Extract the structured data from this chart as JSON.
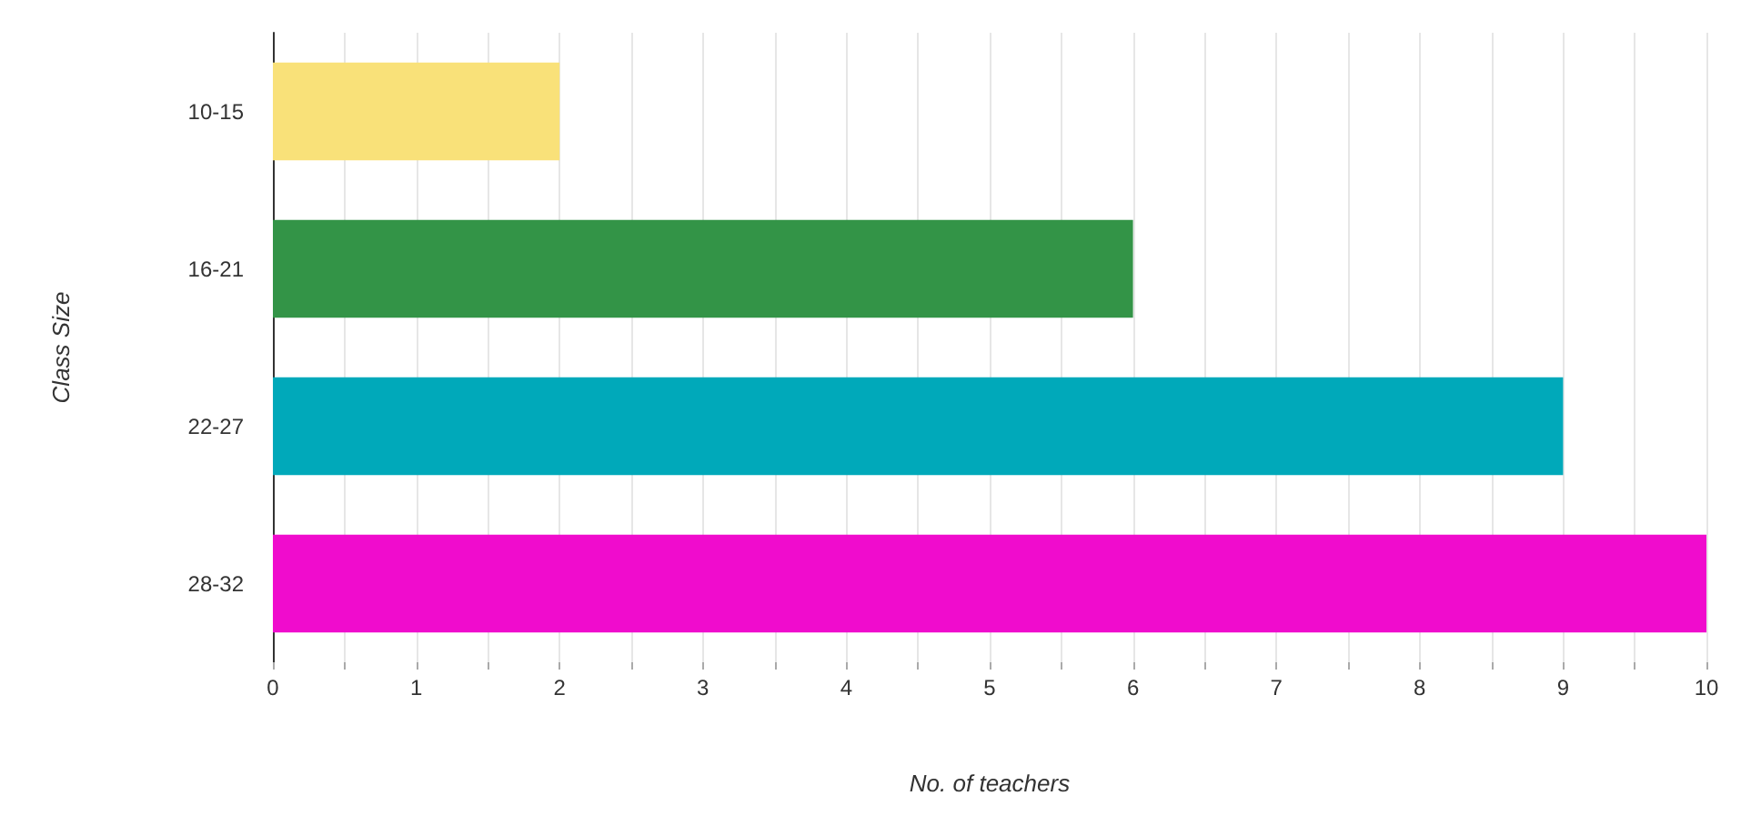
{
  "chart_data": {
    "type": "bar",
    "orientation": "horizontal",
    "xlabel": "No. of teachers",
    "ylabel": "Class Size",
    "categories": [
      "10-15",
      "16-21",
      "22-27",
      "28-32"
    ],
    "values": [
      2,
      6,
      9,
      10
    ],
    "colors": [
      "#f9e179",
      "#339447",
      "#00a9ba",
      "#f00ccd"
    ],
    "xlim": [
      0,
      10
    ],
    "xticks": [
      0,
      {
        "value": 0.5,
        "label": null
      },
      1,
      {
        "value": 1.5,
        "label": null
      },
      2,
      {
        "value": 2.5,
        "label": null
      },
      3,
      {
        "value": 3.5,
        "label": null
      },
      4,
      {
        "value": 4.5,
        "label": null
      },
      5,
      {
        "value": 5.5,
        "label": null
      },
      6,
      {
        "value": 6.5,
        "label": null
      },
      7,
      {
        "value": 7.5,
        "label": null
      },
      8,
      {
        "value": 8.5,
        "label": null
      },
      9,
      {
        "value": 9.5,
        "label": null
      },
      10
    ],
    "grid": "x"
  }
}
